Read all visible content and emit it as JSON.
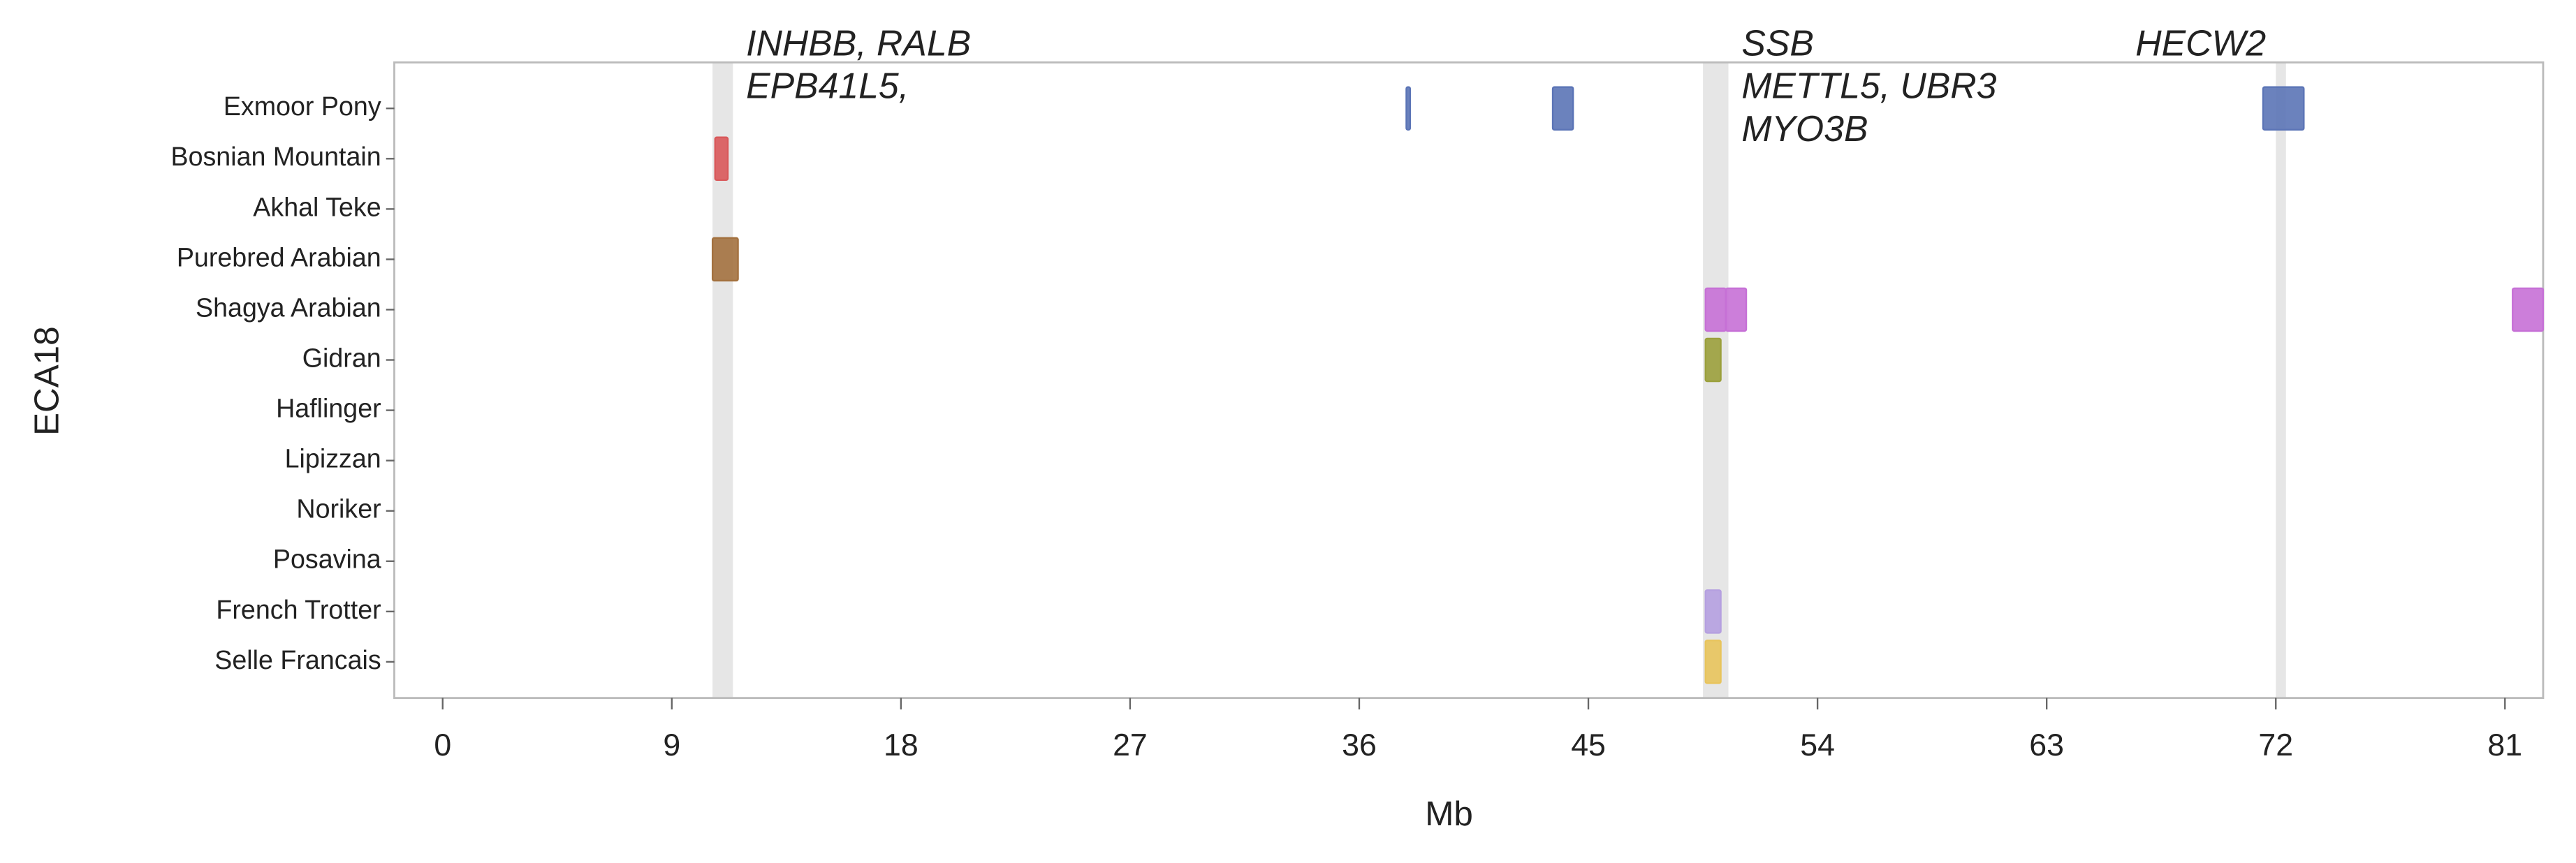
{
  "chart_data": {
    "type": "range",
    "x_label": "Mb",
    "y_label": "ECA18",
    "xlim": [
      -1.9,
      82.5
    ],
    "xticks": [
      0,
      9,
      18,
      27,
      36,
      45,
      54,
      63,
      72,
      81
    ],
    "highlight_color": "#e6e6e6",
    "highlights": [
      [
        10.6,
        11.4
      ],
      [
        49.5,
        50.5
      ],
      [
        72.0,
        72.4
      ]
    ],
    "annotations": [
      [
        "INHBB, RALB",
        "EPB41L5,"
      ],
      [
        "SSB",
        "METTL5, UBR3",
        "MYO3B"
      ],
      [
        "HECW2"
      ]
    ],
    "series": [
      {
        "name": "Exmoor Pony",
        "color": "#5b74b6",
        "values": [
          [
            37.85,
            38.0
          ],
          [
            43.6,
            44.4
          ],
          [
            71.5,
            73.1
          ]
        ]
      },
      {
        "name": "Bosnian Mountain",
        "color": "#d9585a",
        "values": [
          [
            10.7,
            11.2
          ]
        ]
      },
      {
        "name": "Akhal Teke",
        "color": "#888888",
        "values": []
      },
      {
        "name": "Purebred Arabian",
        "color": "#a3713f",
        "values": [
          [
            10.6,
            11.6
          ]
        ]
      },
      {
        "name": "Shagya Arabian",
        "color": "#c670d6",
        "values": [
          [
            49.6,
            50.4
          ],
          [
            50.4,
            51.2
          ],
          [
            81.3,
            82.5
          ]
        ]
      },
      {
        "name": "Gidran",
        "color": "#9ba03c",
        "values": [
          [
            49.6,
            50.2
          ]
        ]
      },
      {
        "name": "Haflinger",
        "color": "#888888",
        "values": []
      },
      {
        "name": "Lipizzan",
        "color": "#888888",
        "values": []
      },
      {
        "name": "Noriker",
        "color": "#888888",
        "values": []
      },
      {
        "name": "Posavina",
        "color": "#888888",
        "values": []
      },
      {
        "name": "French Trotter",
        "color": "#b5a0e0",
        "values": [
          [
            49.6,
            50.2
          ]
        ]
      },
      {
        "name": "Selle Francais",
        "color": "#e8c45c",
        "values": [
          [
            49.6,
            50.2
          ]
        ]
      }
    ]
  }
}
